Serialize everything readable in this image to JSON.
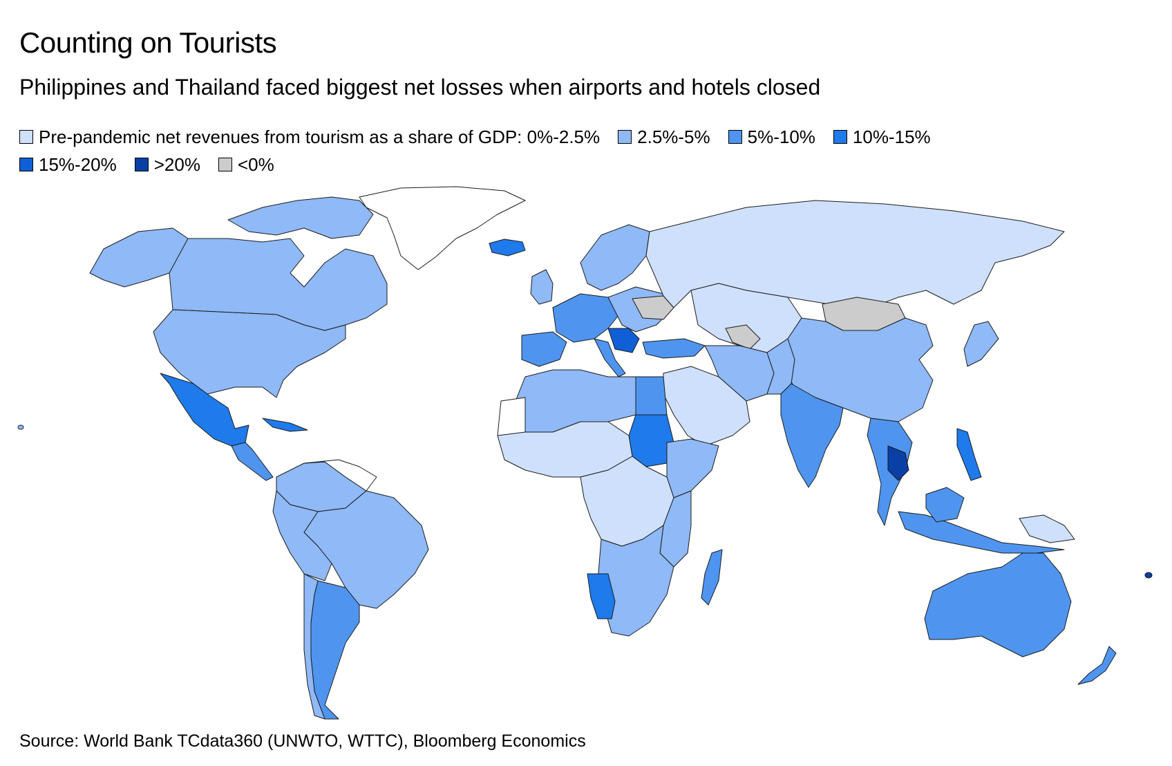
{
  "header": {
    "title": "Counting on Tourists",
    "subtitle": "Philippines and Thailand faced biggest net losses when airports and hotels closed"
  },
  "legend": {
    "row1": [
      {
        "label": "Pre-pandemic net revenues from tourism as a share of GDP: 0%-2.5%",
        "color": "#cfe0fc"
      },
      {
        "label": "2.5%-5%",
        "color": "#8fb9f7"
      },
      {
        "label": "5%-10%",
        "color": "#4f95f0"
      },
      {
        "label": "10%-15%",
        "color": "#1f7aec"
      }
    ],
    "row2": [
      {
        "label": "15%-20%",
        "color": "#0f5fd6"
      },
      {
        "label": ">20%",
        "color": "#0a3fa6"
      },
      {
        "label": "<0%",
        "color": "#cccccc"
      }
    ]
  },
  "colors": {
    "c0": "#cfe0fc",
    "c1": "#8fb9f7",
    "c2": "#4f95f0",
    "c3": "#1f7aec",
    "c4": "#0f5fd6",
    "c5": "#0a3fa6",
    "neg": "#cccccc",
    "none": "#ffffff"
  },
  "footer": {
    "source": "Source: World Bank TCdata360 (UNWTO, WTTC), Bloomberg Economics"
  }
}
